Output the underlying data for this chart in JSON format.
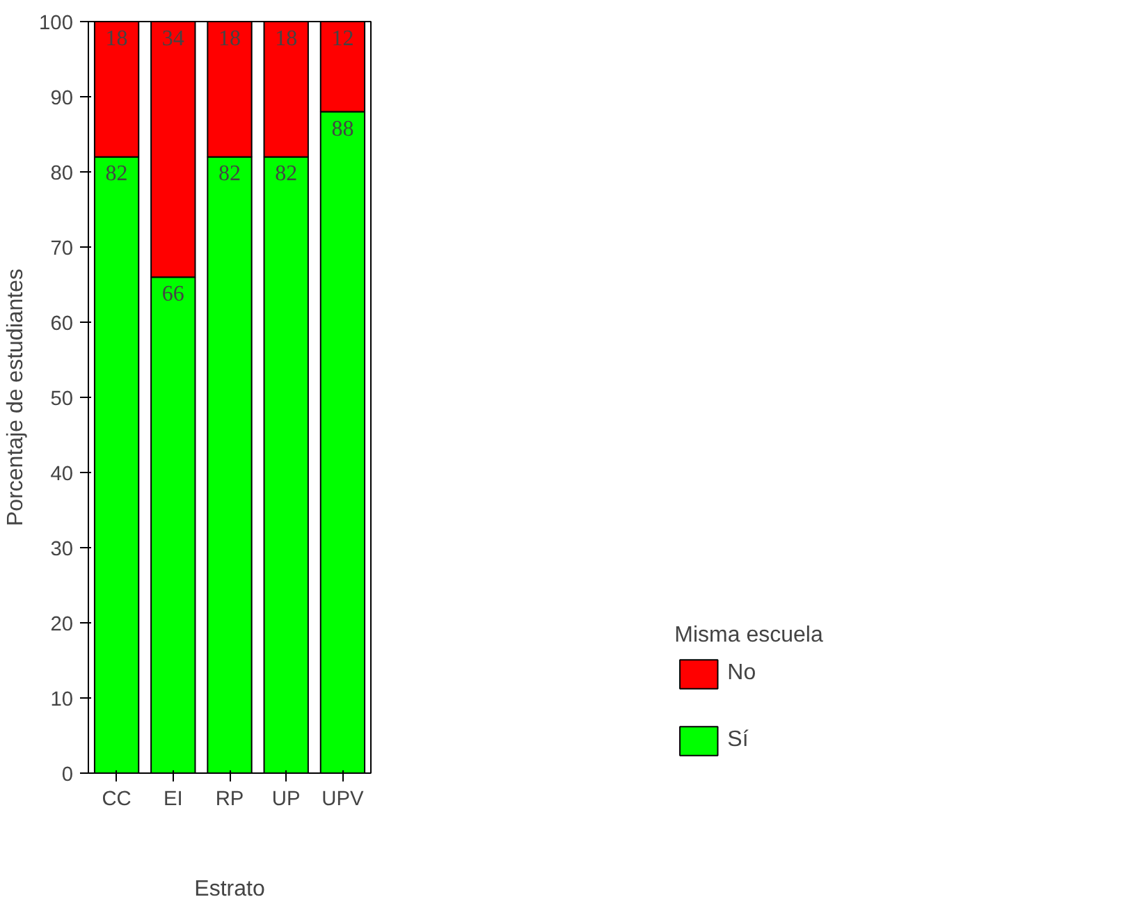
{
  "chart_data": {
    "type": "bar",
    "stacked": true,
    "categories": [
      "CC",
      "EI",
      "RP",
      "UP",
      "UPV"
    ],
    "series": [
      {
        "name": "Sí",
        "color": "#00ff00",
        "values": [
          82,
          66,
          82,
          82,
          88
        ]
      },
      {
        "name": "No",
        "color": "#ff0000",
        "values": [
          18,
          34,
          18,
          18,
          12
        ]
      }
    ],
    "ylim": [
      0,
      100
    ],
    "yticks": [
      0,
      10,
      20,
      30,
      40,
      50,
      60,
      70,
      80,
      90,
      100
    ],
    "xlabel": "Estrato",
    "ylabel": "Porcentaje de estudiantes",
    "legend_title": "Misma escuela",
    "legend": "right",
    "grid": false,
    "data_labels": true
  }
}
